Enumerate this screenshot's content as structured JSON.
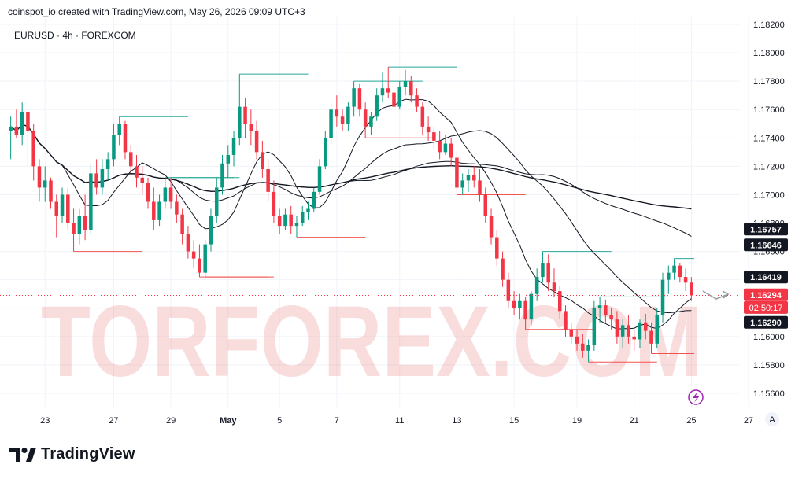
{
  "header": {
    "attribution": "coinspot_io created with TradingView.com, May 26, 2026 09:09 UTC+3"
  },
  "symbol_line": "EURUSD · 4h · FOREXCOM",
  "branding": {
    "logo_text": "TradingView",
    "watermark": "TORFOREX.COM"
  },
  "chart_data": {
    "type": "candlestick",
    "symbol": "EURUSD",
    "timeframe": "4h",
    "exchange": "FOREXCOM",
    "ylim": [
      1.155,
      1.1825
    ],
    "y_ticks": [
      "1.18200",
      "1.18000",
      "1.17800",
      "1.17600",
      "1.17400",
      "1.17200",
      "1.17000",
      "1.16800",
      "1.16600",
      "1.16400",
      "1.16200",
      "1.16000",
      "1.15800",
      "1.15600"
    ],
    "x_ticks": [
      "23",
      "27",
      "29",
      "May",
      "5",
      "7",
      "11",
      "13",
      "15",
      "19",
      "21",
      "25",
      "27"
    ],
    "price_labels": [
      {
        "text": "1.16757",
        "y": 1.16757,
        "style": "dark"
      },
      {
        "text": "1.16646",
        "y": 1.16646,
        "style": "dark"
      },
      {
        "text": "1.16419",
        "y": 1.16419,
        "style": "dark"
      },
      {
        "text": "1.16294",
        "y": 1.16294,
        "style": "red"
      },
      {
        "text": "02:50:17",
        "y": 1.16205,
        "style": "red-sub"
      },
      {
        "text": "1.16290",
        "y": 1.161,
        "style": "dark"
      }
    ],
    "colors": {
      "up": "#089981",
      "down": "#f23645",
      "ma": "#131722",
      "grid": "#f0f3fa",
      "level_up": "#26a69a",
      "level_down": "#ef5350"
    },
    "candles": [
      [
        1.1745,
        1.1755,
        1.1725,
        1.1748
      ],
      [
        1.1748,
        1.176,
        1.174,
        1.1742
      ],
      [
        1.1742,
        1.1765,
        1.1735,
        1.1758
      ],
      [
        1.1758,
        1.176,
        1.172,
        1.1745
      ],
      [
        1.1745,
        1.175,
        1.171,
        1.172
      ],
      [
        1.172,
        1.1725,
        1.1695,
        1.1705
      ],
      [
        1.1705,
        1.172,
        1.1695,
        1.171
      ],
      [
        1.171,
        1.1712,
        1.169,
        1.1695
      ],
      [
        1.1695,
        1.17,
        1.167,
        1.1685
      ],
      [
        1.1685,
        1.1705,
        1.168,
        1.17
      ],
      [
        1.17,
        1.1705,
        1.1675,
        1.168
      ],
      [
        1.168,
        1.169,
        1.166,
        1.1672
      ],
      [
        1.1672,
        1.169,
        1.1665,
        1.1685
      ],
      [
        1.1685,
        1.17,
        1.1668,
        1.1675
      ],
      [
        1.1675,
        1.1722,
        1.1672,
        1.1715
      ],
      [
        1.1715,
        1.1725,
        1.17,
        1.1705
      ],
      [
        1.1705,
        1.1725,
        1.17,
        1.1718
      ],
      [
        1.1718,
        1.173,
        1.171,
        1.1725
      ],
      [
        1.1725,
        1.175,
        1.172,
        1.1742
      ],
      [
        1.1742,
        1.1755,
        1.1735,
        1.175
      ],
      [
        1.175,
        1.1752,
        1.1725,
        1.173
      ],
      [
        1.173,
        1.1735,
        1.1715,
        1.172
      ],
      [
        1.172,
        1.1728,
        1.1705,
        1.1712
      ],
      [
        1.1712,
        1.172,
        1.17,
        1.1708
      ],
      [
        1.1708,
        1.1712,
        1.169,
        1.1695
      ],
      [
        1.1695,
        1.1705,
        1.1675,
        1.1682
      ],
      [
        1.1682,
        1.17,
        1.1678,
        1.1695
      ],
      [
        1.1695,
        1.1712,
        1.169,
        1.1705
      ],
      [
        1.1705,
        1.1712,
        1.169,
        1.1695
      ],
      [
        1.1695,
        1.17,
        1.168,
        1.1686
      ],
      [
        1.1686,
        1.169,
        1.1665,
        1.1672
      ],
      [
        1.1672,
        1.1678,
        1.1655,
        1.166
      ],
      [
        1.166,
        1.1668,
        1.1648,
        1.1655
      ],
      [
        1.1655,
        1.1665,
        1.1642,
        1.1645
      ],
      [
        1.1645,
        1.1668,
        1.1642,
        1.1665
      ],
      [
        1.1665,
        1.169,
        1.166,
        1.1685
      ],
      [
        1.1685,
        1.1712,
        1.168,
        1.1705
      ],
      [
        1.1705,
        1.1728,
        1.17,
        1.1722
      ],
      [
        1.1722,
        1.1735,
        1.1712,
        1.1728
      ],
      [
        1.1728,
        1.1745,
        1.172,
        1.174
      ],
      [
        1.174,
        1.1785,
        1.1735,
        1.1762
      ],
      [
        1.1762,
        1.1768,
        1.174,
        1.175
      ],
      [
        1.175,
        1.176,
        1.1735,
        1.1745
      ],
      [
        1.1745,
        1.1752,
        1.1725,
        1.173
      ],
      [
        1.173,
        1.1738,
        1.1712,
        1.1718
      ],
      [
        1.1718,
        1.1725,
        1.1695,
        1.1702
      ],
      [
        1.1702,
        1.171,
        1.168,
        1.1685
      ],
      [
        1.1685,
        1.169,
        1.1672,
        1.1678
      ],
      [
        1.1678,
        1.169,
        1.1675,
        1.1686
      ],
      [
        1.1686,
        1.1692,
        1.1672,
        1.1678
      ],
      [
        1.1678,
        1.1685,
        1.167,
        1.168
      ],
      [
        1.168,
        1.1692,
        1.1678,
        1.1688
      ],
      [
        1.1688,
        1.1695,
        1.1682,
        1.169
      ],
      [
        1.169,
        1.1705,
        1.1688,
        1.1702
      ],
      [
        1.1702,
        1.1725,
        1.17,
        1.172
      ],
      [
        1.172,
        1.1745,
        1.1718,
        1.174
      ],
      [
        1.174,
        1.1765,
        1.1735,
        1.176
      ],
      [
        1.176,
        1.177,
        1.1748,
        1.1755
      ],
      [
        1.1755,
        1.176,
        1.1745,
        1.175
      ],
      [
        1.175,
        1.1765,
        1.1745,
        1.1762
      ],
      [
        1.1762,
        1.178,
        1.1755,
        1.1775
      ],
      [
        1.1775,
        1.1778,
        1.1755,
        1.176
      ],
      [
        1.176,
        1.1765,
        1.174,
        1.1748
      ],
      [
        1.1748,
        1.1758,
        1.1742,
        1.1755
      ],
      [
        1.1755,
        1.1775,
        1.1752,
        1.177
      ],
      [
        1.177,
        1.1786,
        1.1765,
        1.1775
      ],
      [
        1.1775,
        1.179,
        1.1768,
        1.1772
      ],
      [
        1.1772,
        1.1776,
        1.1758,
        1.1762
      ],
      [
        1.1762,
        1.178,
        1.176,
        1.1776
      ],
      [
        1.1776,
        1.1788,
        1.177,
        1.178
      ],
      [
        1.178,
        1.1784,
        1.1765,
        1.177
      ],
      [
        1.177,
        1.1775,
        1.1758,
        1.1762
      ],
      [
        1.1762,
        1.1765,
        1.1742,
        1.1748
      ],
      [
        1.1748,
        1.1755,
        1.1738,
        1.1744
      ],
      [
        1.1744,
        1.1748,
        1.1732,
        1.1738
      ],
      [
        1.1738,
        1.1745,
        1.1725,
        1.173
      ],
      [
        1.173,
        1.1742,
        1.1728,
        1.1736
      ],
      [
        1.1736,
        1.174,
        1.172,
        1.1726
      ],
      [
        1.1726,
        1.173,
        1.17,
        1.1705
      ],
      [
        1.1705,
        1.1715,
        1.17,
        1.171
      ],
      [
        1.171,
        1.1718,
        1.1702,
        1.1714
      ],
      [
        1.1714,
        1.172,
        1.1705,
        1.171
      ],
      [
        1.171,
        1.1718,
        1.1695,
        1.17
      ],
      [
        1.17,
        1.1705,
        1.168,
        1.1685
      ],
      [
        1.1685,
        1.169,
        1.1665,
        1.167
      ],
      [
        1.167,
        1.1675,
        1.165,
        1.1655
      ],
      [
        1.1655,
        1.166,
        1.1635,
        1.164
      ],
      [
        1.164,
        1.1645,
        1.162,
        1.1625
      ],
      [
        1.1625,
        1.1632,
        1.1615,
        1.162
      ],
      [
        1.162,
        1.163,
        1.1612,
        1.1625
      ],
      [
        1.1625,
        1.1628,
        1.1605,
        1.1612
      ],
      [
        1.1612,
        1.1632,
        1.1608,
        1.163
      ],
      [
        1.163,
        1.1648,
        1.1625,
        1.1642
      ],
      [
        1.1642,
        1.166,
        1.1638,
        1.1652
      ],
      [
        1.1652,
        1.1658,
        1.1632,
        1.1638
      ],
      [
        1.1638,
        1.1648,
        1.1628,
        1.1632
      ],
      [
        1.1632,
        1.1636,
        1.1612,
        1.1618
      ],
      [
        1.1618,
        1.1622,
        1.16,
        1.1605
      ],
      [
        1.1605,
        1.161,
        1.1595,
        1.16
      ],
      [
        1.16,
        1.1605,
        1.159,
        1.1595
      ],
      [
        1.1595,
        1.1602,
        1.1585,
        1.159
      ],
      [
        1.159,
        1.1598,
        1.1582,
        1.1594
      ],
      [
        1.1594,
        1.1625,
        1.159,
        1.162
      ],
      [
        1.162,
        1.1628,
        1.161,
        1.1622
      ],
      [
        1.1622,
        1.1626,
        1.161,
        1.1615
      ],
      [
        1.1615,
        1.162,
        1.1605,
        1.1612
      ],
      [
        1.1612,
        1.1618,
        1.1595,
        1.16
      ],
      [
        1.16,
        1.1612,
        1.1592,
        1.1608
      ],
      [
        1.1608,
        1.1615,
        1.1595,
        1.16
      ],
      [
        1.16,
        1.1605,
        1.159,
        1.1598
      ],
      [
        1.1598,
        1.1612,
        1.1592,
        1.161
      ],
      [
        1.161,
        1.1616,
        1.1598,
        1.1604
      ],
      [
        1.1604,
        1.161,
        1.1588,
        1.1595
      ],
      [
        1.1595,
        1.162,
        1.1592,
        1.1615
      ],
      [
        1.1615,
        1.1645,
        1.161,
        1.164
      ],
      [
        1.164,
        1.165,
        1.163,
        1.1645
      ],
      [
        1.1645,
        1.1655,
        1.164,
        1.165
      ],
      [
        1.165,
        1.1652,
        1.1638,
        1.1642
      ],
      [
        1.1642,
        1.1648,
        1.1632,
        1.1638
      ],
      [
        1.1638,
        1.1642,
        1.1625,
        1.1629
      ]
    ],
    "moving_averages": [
      {
        "name": "",
        "period": 10
      },
      {
        "name": "",
        "period": 30
      },
      {
        "name": "",
        "period": 60
      },
      {
        "name": "",
        "period": 120
      }
    ],
    "date_tick_indices": [
      6,
      18,
      28,
      38,
      47,
      57,
      68,
      78,
      88,
      99,
      109,
      119,
      129
    ]
  }
}
